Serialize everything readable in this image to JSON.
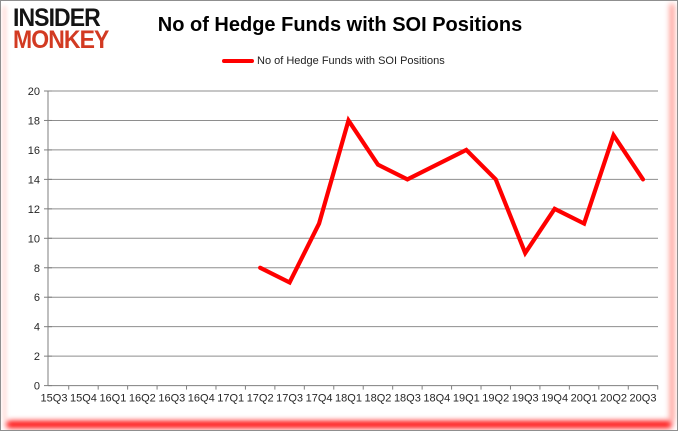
{
  "logo": {
    "line1": "INSIDER",
    "line2": "MONKEY",
    "line1_color": "#141414",
    "line2_color": "#d23a22"
  },
  "header": {
    "title": "No of Hedge Funds with SOI Positions"
  },
  "legend": {
    "label": "No of Hedge Funds with SOI Positions",
    "marker_color": "#ff0000",
    "position": "top"
  },
  "colors": {
    "series_line": "#ff0000",
    "gridline": "#8e8e8e",
    "axis": "#7f7f7f",
    "tick_label": "#262626",
    "background": "#ffffff",
    "edge_glow": "#ff0202"
  },
  "chart_data": {
    "type": "line",
    "title": "No of Hedge Funds with SOI Positions",
    "categories": [
      "15Q3",
      "15Q4",
      "16Q1",
      "16Q2",
      "16Q3",
      "16Q4",
      "17Q1",
      "17Q2",
      "17Q3",
      "17Q4",
      "18Q1",
      "18Q2",
      "18Q3",
      "18Q4",
      "19Q1",
      "19Q2",
      "19Q3",
      "19Q4",
      "20Q1",
      "20Q2",
      "20Q3"
    ],
    "series": [
      {
        "name": "No of Hedge Funds with SOI Positions",
        "color": "#ff0000",
        "values": [
          null,
          null,
          null,
          null,
          null,
          null,
          null,
          8,
          7,
          11,
          18,
          15,
          14,
          15,
          16,
          14,
          9,
          12,
          11,
          17,
          14
        ]
      }
    ],
    "xlabel": "",
    "ylabel": "",
    "ylim": [
      0,
      20
    ],
    "ytick_step": 2,
    "grid": "horizontal",
    "legend_position": "top"
  }
}
